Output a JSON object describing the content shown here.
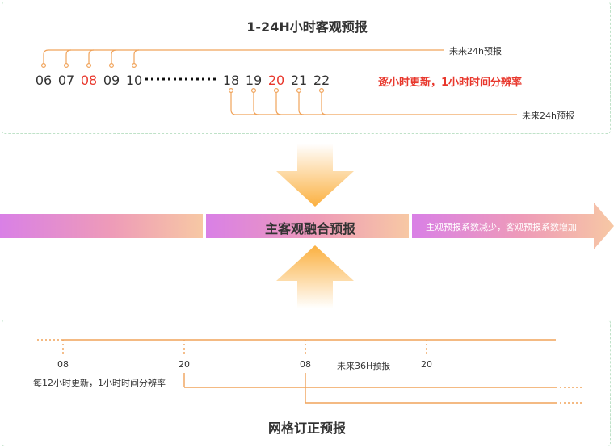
{
  "top": {
    "title": "1-24H小时客观预报",
    "early_hours": [
      "06",
      "07",
      "08",
      "09",
      "10"
    ],
    "late_hours": [
      "18",
      "19",
      "20",
      "21",
      "22"
    ],
    "highlight_hours": [
      "08",
      "20"
    ],
    "forecast_note_top": "未来24h预报",
    "forecast_note_bottom": "未来24h预报",
    "update_note": "逐小时更新，1小时时间分辨率"
  },
  "fusion": {
    "label": "主客观融合预报",
    "coefficient_note": "主观预报系数减少，客观预报系数增加"
  },
  "bottom": {
    "title": "网格订正预报",
    "ticks": [
      "08",
      "20",
      "08",
      "20"
    ],
    "forecast_note": "未来36H预报",
    "update_note": "每12小时更新，1小时时间分辨率"
  },
  "colors": {
    "orange_line": "#f0a35a",
    "highlight": "#e8372c",
    "panel_border": "#bfe2c8",
    "band_left": "#d97fe0",
    "band_right": "#f8c9a8",
    "arrow": "#fbb34a"
  }
}
